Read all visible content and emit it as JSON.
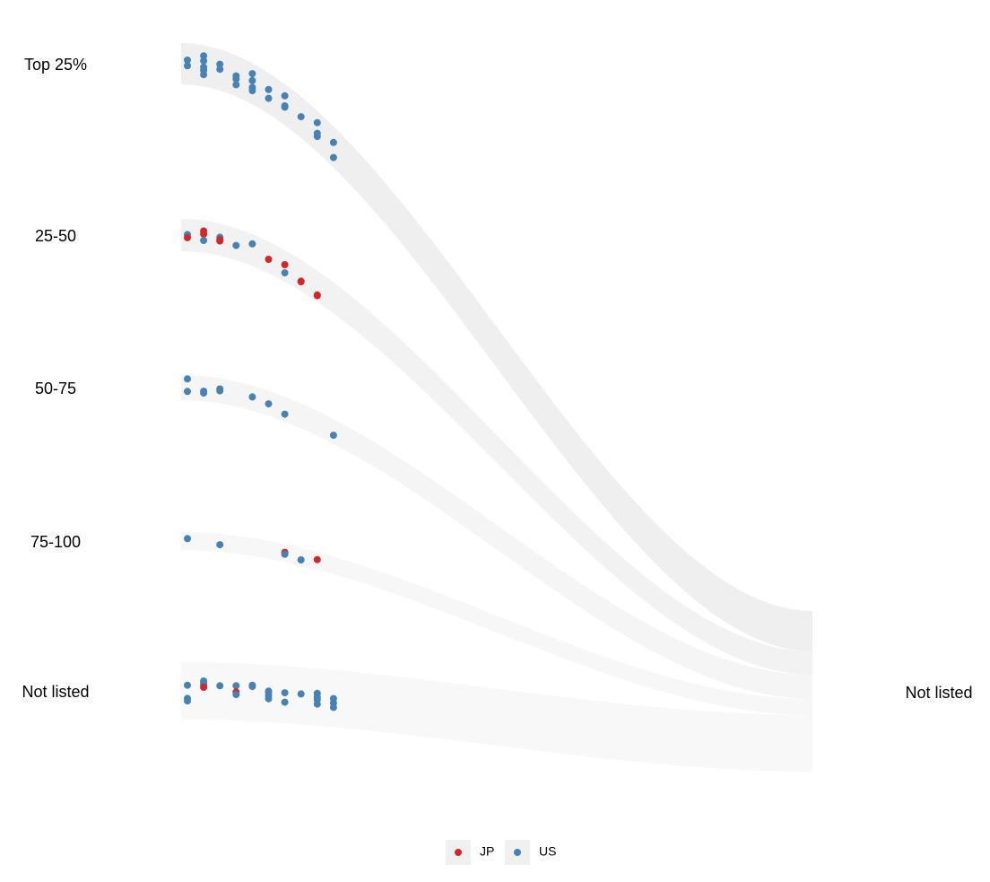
{
  "chart_data": {
    "type": "alluvial",
    "left_axis": {
      "categories": [
        "Top 25%",
        "25-50",
        "50-75",
        "75-100",
        "Not listed"
      ]
    },
    "right_axis": {
      "categories": [
        "Not listed"
      ]
    },
    "flows": [
      {
        "from": "Top 25%",
        "to": "Not listed",
        "shade": "#efefef"
      },
      {
        "from": "25-50",
        "to": "Not listed",
        "shade": "#f2f2f2"
      },
      {
        "from": "50-75",
        "to": "Not listed",
        "shade": "#f5f5f5"
      },
      {
        "from": "75-100",
        "to": "Not listed",
        "shade": "#f7f7f7"
      },
      {
        "from": "Not listed",
        "to": "Not listed",
        "shade": "#f8f8f8"
      }
    ],
    "legend": {
      "position": "bottom",
      "entries": [
        {
          "label": "JP",
          "color": "#d62728"
        },
        {
          "label": "US",
          "color": "#4682b4"
        }
      ]
    },
    "points": [
      {
        "category": "Top 25%",
        "step": 0,
        "offset": -0.6,
        "country": "US"
      },
      {
        "category": "Top 25%",
        "step": 0,
        "offset": 0.3,
        "country": "US"
      },
      {
        "category": "Top 25%",
        "step": 1,
        "offset": -1.6,
        "country": "US"
      },
      {
        "category": "Top 25%",
        "step": 1,
        "offset": -0.8,
        "country": "US"
      },
      {
        "category": "Top 25%",
        "step": 1,
        "offset": 0.2,
        "country": "US"
      },
      {
        "category": "Top 25%",
        "step": 1,
        "offset": 0.7,
        "country": "US"
      },
      {
        "category": "Top 25%",
        "step": 1,
        "offset": 1.4,
        "country": "US"
      },
      {
        "category": "Top 25%",
        "step": 2,
        "offset": -0.9,
        "country": "US"
      },
      {
        "category": "Top 25%",
        "step": 2,
        "offset": -0.1,
        "country": "US"
      },
      {
        "category": "Top 25%",
        "step": 3,
        "offset": 0.0,
        "country": "US"
      },
      {
        "category": "Top 25%",
        "step": 3,
        "offset": 0.5,
        "country": "US"
      },
      {
        "category": "Top 25%",
        "step": 3,
        "offset": 1.4,
        "country": "US"
      },
      {
        "category": "Top 25%",
        "step": 4,
        "offset": -1.6,
        "country": "US"
      },
      {
        "category": "Top 25%",
        "step": 4,
        "offset": -0.5,
        "country": "US"
      },
      {
        "category": "Top 25%",
        "step": 4,
        "offset": 0.6,
        "country": "US"
      },
      {
        "category": "Top 25%",
        "step": 4,
        "offset": 1.1,
        "country": "US"
      },
      {
        "category": "Top 25%",
        "step": 5,
        "offset": -0.6,
        "country": "US"
      },
      {
        "category": "Top 25%",
        "step": 5,
        "offset": 0.8,
        "country": "US"
      },
      {
        "category": "Top 25%",
        "step": 6,
        "offset": -1.4,
        "country": "US"
      },
      {
        "category": "Top 25%",
        "step": 6,
        "offset": 0.2,
        "country": "US"
      },
      {
        "category": "Top 25%",
        "step": 6,
        "offset": 0.4,
        "country": "US"
      },
      {
        "category": "Top 25%",
        "step": 7,
        "offset": -0.1,
        "country": "US"
      },
      {
        "category": "Top 25%",
        "step": 8,
        "offset": -1.4,
        "country": "US"
      },
      {
        "category": "Top 25%",
        "step": 8,
        "offset": 0.3,
        "country": "US"
      },
      {
        "category": "Top 25%",
        "step": 8,
        "offset": 0.8,
        "country": "US"
      },
      {
        "category": "Top 25%",
        "step": 9,
        "offset": -0.7,
        "country": "US"
      },
      {
        "category": "Top 25%",
        "step": 9,
        "offset": 1.7,
        "country": "US"
      },
      {
        "category": "25-50",
        "step": 0,
        "offset": -0.1,
        "country": "US"
      },
      {
        "category": "25-50",
        "step": 0,
        "offset": 0.4,
        "country": "JP"
      },
      {
        "category": "25-50",
        "step": 1,
        "offset": -0.9,
        "country": "JP"
      },
      {
        "category": "25-50",
        "step": 1,
        "offset": -0.4,
        "country": "JP"
      },
      {
        "category": "25-50",
        "step": 1,
        "offset": 0.6,
        "country": "US"
      },
      {
        "category": "25-50",
        "step": 2,
        "offset": -0.4,
        "country": "US"
      },
      {
        "category": "25-50",
        "step": 2,
        "offset": 0.0,
        "country": "JP"
      },
      {
        "category": "25-50",
        "step": 2,
        "offset": 0.2,
        "country": "JP"
      },
      {
        "category": "25-50",
        "step": 3,
        "offset": 0.2,
        "country": "US"
      },
      {
        "category": "25-50",
        "step": 4,
        "offset": -1.0,
        "country": "US"
      },
      {
        "category": "25-50",
        "step": 5,
        "offset": 0.3,
        "country": "JP"
      },
      {
        "category": "25-50",
        "step": 6,
        "offset": -0.2,
        "country": "JP"
      },
      {
        "category": "25-50",
        "step": 6,
        "offset": 1.1,
        "country": "US"
      },
      {
        "category": "25-50",
        "step": 7,
        "offset": 0.9,
        "country": "JP"
      },
      {
        "category": "25-50",
        "step": 7,
        "offset": 1.0,
        "country": "JP"
      },
      {
        "category": "25-50",
        "step": 8,
        "offset": 1.4,
        "country": "JP"
      },
      {
        "category": "25-50",
        "step": 8,
        "offset": 1.5,
        "country": "JP"
      },
      {
        "category": "50-75",
        "step": 0,
        "offset": -1.4,
        "country": "US"
      },
      {
        "category": "50-75",
        "step": 0,
        "offset": 0.6,
        "country": "US"
      },
      {
        "category": "50-75",
        "step": 1,
        "offset": 0.4,
        "country": "US"
      },
      {
        "category": "50-75",
        "step": 1,
        "offset": 0.7,
        "country": "US"
      },
      {
        "category": "50-75",
        "step": 2,
        "offset": -0.3,
        "country": "US"
      },
      {
        "category": "50-75",
        "step": 2,
        "offset": 0.0,
        "country": "US"
      },
      {
        "category": "50-75",
        "step": 4,
        "offset": -0.2,
        "country": "US"
      },
      {
        "category": "50-75",
        "step": 5,
        "offset": 0.1,
        "country": "US"
      },
      {
        "category": "50-75",
        "step": 6,
        "offset": 0.8,
        "country": "US"
      },
      {
        "category": "50-75",
        "step": 9,
        "offset": 0.6,
        "country": "US"
      },
      {
        "category": "75-100",
        "step": 0,
        "offset": -0.4,
        "country": "US"
      },
      {
        "category": "75-100",
        "step": 2,
        "offset": 0.3,
        "country": "US"
      },
      {
        "category": "75-100",
        "step": 6,
        "offset": -0.1,
        "country": "JP"
      },
      {
        "category": "75-100",
        "step": 6,
        "offset": 0.2,
        "country": "US"
      },
      {
        "category": "75-100",
        "step": 7,
        "offset": 0.5,
        "country": "US"
      },
      {
        "category": "75-100",
        "step": 8,
        "offset": -0.2,
        "country": "JP"
      },
      {
        "category": "Not listed",
        "step": 0,
        "offset": -0.9,
        "country": "US"
      },
      {
        "category": "Not listed",
        "step": 0,
        "offset": 1.2,
        "country": "US"
      },
      {
        "category": "Not listed",
        "step": 0,
        "offset": 1.6,
        "country": "US"
      },
      {
        "category": "Not listed",
        "step": 1,
        "offset": -1.6,
        "country": "US"
      },
      {
        "category": "Not listed",
        "step": 1,
        "offset": -1.3,
        "country": "US"
      },
      {
        "category": "Not listed",
        "step": 1,
        "offset": -1.0,
        "country": "US"
      },
      {
        "category": "Not listed",
        "step": 1,
        "offset": -0.6,
        "country": "JP"
      },
      {
        "category": "Not listed",
        "step": 2,
        "offset": -0.9,
        "country": "US"
      },
      {
        "category": "Not listed",
        "step": 3,
        "offset": -1.0,
        "country": "US"
      },
      {
        "category": "Not listed",
        "step": 3,
        "offset": 0.0,
        "country": "JP"
      },
      {
        "category": "Not listed",
        "step": 3,
        "offset": 0.4,
        "country": "US"
      },
      {
        "category": "Not listed",
        "step": 4,
        "offset": -1.2,
        "country": "US"
      },
      {
        "category": "Not listed",
        "step": 4,
        "offset": -1.0,
        "country": "US"
      },
      {
        "category": "Not listed",
        "step": 5,
        "offset": -0.4,
        "country": "US"
      },
      {
        "category": "Not listed",
        "step": 5,
        "offset": -0.2,
        "country": "US"
      },
      {
        "category": "Not listed",
        "step": 5,
        "offset": 0.3,
        "country": "US"
      },
      {
        "category": "Not listed",
        "step": 5,
        "offset": 0.8,
        "country": "US"
      },
      {
        "category": "Not listed",
        "step": 6,
        "offset": -0.3,
        "country": "US"
      },
      {
        "category": "Not listed",
        "step": 6,
        "offset": 1.2,
        "country": "US"
      },
      {
        "category": "Not listed",
        "step": 7,
        "offset": -0.3,
        "country": "US"
      },
      {
        "category": "Not listed",
        "step": 8,
        "offset": -0.6,
        "country": "US"
      },
      {
        "category": "Not listed",
        "step": 8,
        "offset": 0.0,
        "country": "US"
      },
      {
        "category": "Not listed",
        "step": 8,
        "offset": 0.4,
        "country": "US"
      },
      {
        "category": "Not listed",
        "step": 8,
        "offset": 1.1,
        "country": "US"
      },
      {
        "category": "Not listed",
        "step": 9,
        "offset": 0.0,
        "country": "US"
      },
      {
        "category": "Not listed",
        "step": 9,
        "offset": 0.7,
        "country": "US"
      },
      {
        "category": "Not listed",
        "step": 9,
        "offset": 1.4,
        "country": "US"
      }
    ]
  }
}
